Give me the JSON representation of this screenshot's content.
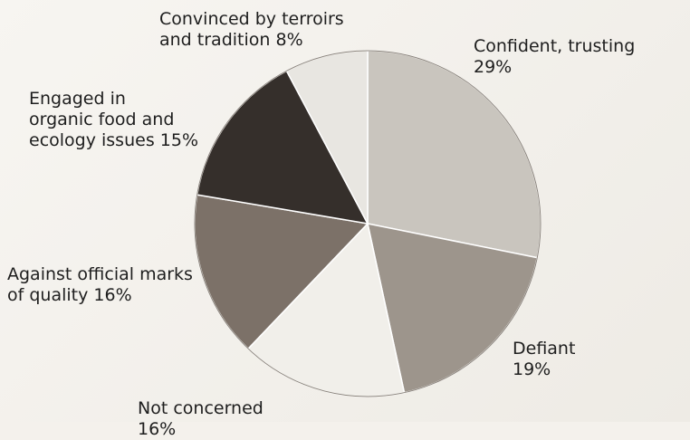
{
  "chart_data": {
    "type": "pie",
    "slices": [
      {
        "label_lines": [
          "Confident, trusting"
        ],
        "value": 29,
        "pct_text": "29%",
        "color": "#c9c5be"
      },
      {
        "label_lines": [
          "Defiant"
        ],
        "value": 19,
        "pct_text": "19%",
        "color": "#9d958c"
      },
      {
        "label_lines": [
          "Not concerned"
        ],
        "value": 16,
        "pct_text": "16%",
        "color": "#f1efea"
      },
      {
        "label_lines": [
          "Against official marks",
          "of quality"
        ],
        "value": 16,
        "pct_text": "16%",
        "color": "#7c7168"
      },
      {
        "label_lines": [
          "Engaged in",
          "organic food and",
          "ecology issues"
        ],
        "value": 15,
        "pct_text": "15%",
        "color": "#352f2b"
      },
      {
        "label_lines": [
          "Convinced by terroirs",
          "and tradition"
        ],
        "value": 8,
        "pct_text": "8%",
        "color": "#e8e6e1"
      }
    ],
    "start_angle_deg": 0,
    "direction": "clockwise",
    "legend": "none (labels beside slices)"
  }
}
